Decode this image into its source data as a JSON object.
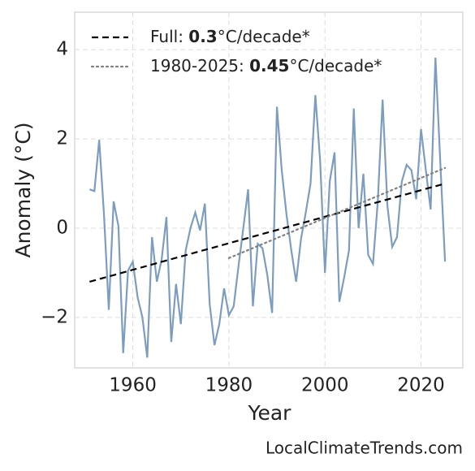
{
  "chart_data": {
    "type": "line",
    "xlabel": "Year",
    "ylabel": "Anomaly (°C)",
    "source": "LocalClimateTrends.com",
    "xlim": [
      1947.9,
      2028.7
    ],
    "xticks": [
      1960,
      1980,
      2000,
      2020
    ],
    "ylim": [
      -3.13,
      4.84
    ],
    "yticks": [
      {
        "value": -2,
        "label": "−2"
      },
      0,
      2,
      4
    ],
    "grid": true,
    "legend": "upper left",
    "series": [
      {
        "color": "#7d9dbf",
        "style": "solid",
        "x": [
          1951,
          1952,
          1953,
          1954,
          1955,
          1956,
          1957,
          1958,
          1959,
          1960,
          1961,
          1962,
          1963,
          1964,
          1965,
          1966,
          1967,
          1968,
          1969,
          1970,
          1971,
          1972,
          1973,
          1974,
          1975,
          1976,
          1977,
          1978,
          1979,
          1980,
          1981,
          1982,
          1983,
          1984,
          1985,
          1986,
          1987,
          1988,
          1989,
          1990,
          1991,
          1992,
          1993,
          1994,
          1995,
          1996,
          1997,
          1998,
          1999,
          2000,
          2001,
          2002,
          2003,
          2004,
          2005,
          2006,
          2007,
          2008,
          2009,
          2010,
          2011,
          2012,
          2013,
          2014,
          2015,
          2016,
          2017,
          2018,
          2019,
          2020,
          2021,
          2022,
          2023,
          2024,
          2025
        ],
        "values": [
          0.87,
          0.83,
          1.98,
          0.3,
          -1.83,
          0.6,
          0.05,
          -2.8,
          -0.95,
          -0.75,
          -1.55,
          -2.0,
          -2.9,
          -0.2,
          -1.2,
          -0.7,
          0.25,
          -2.55,
          -1.25,
          -2.15,
          -0.5,
          0.0,
          0.35,
          -0.05,
          0.55,
          -1.7,
          -2.62,
          -2.15,
          -1.35,
          -1.95,
          -1.75,
          -0.85,
          0.0,
          0.87,
          -1.75,
          -0.35,
          -0.45,
          -1.05,
          -1.9,
          2.72,
          1.3,
          0.3,
          -0.5,
          -1.2,
          -0.25,
          0.35,
          1.0,
          2.98,
          1.5,
          -1.0,
          1.05,
          1.7,
          -1.65,
          -1.1,
          -0.5,
          2.68,
          0.0,
          1.22,
          -0.6,
          -0.8,
          0.6,
          2.88,
          0.5,
          -0.42,
          -0.2,
          1.05,
          1.42,
          1.3,
          0.65,
          2.22,
          1.3,
          0.42,
          3.82,
          1.5,
          -0.75
        ]
      },
      {
        "name": [
          "Full: ",
          "0.3",
          "°C/decade*"
        ],
        "color": "#000000",
        "style": "dashed",
        "x": [
          1951,
          2025
        ],
        "values": [
          -1.2,
          1.0
        ]
      },
      {
        "name": [
          "1980-2025: ",
          "0.45",
          "°C/decade*"
        ],
        "color": "#808080",
        "style": "dotted",
        "x": [
          1980,
          2025
        ],
        "values": [
          -0.67,
          1.35
        ]
      }
    ]
  }
}
